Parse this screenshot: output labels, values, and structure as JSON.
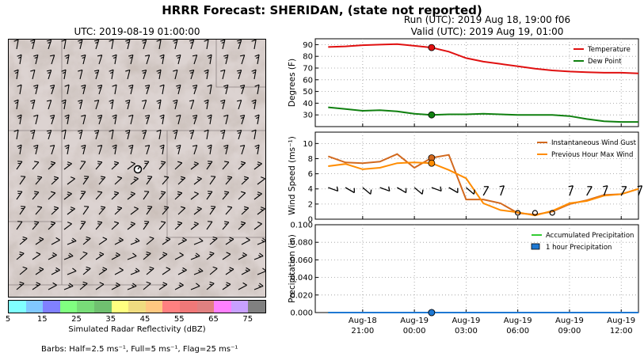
{
  "title": "HRRR Forecast: SHERIDAN, (state not reported)",
  "map": {
    "utc_label": "UTC: 2019-08-19 01:00:00",
    "colorbar": {
      "colors": [
        "#80ffff",
        "#80c8ff",
        "#8080ff",
        "#80ff80",
        "#78dc78",
        "#70c070",
        "#ffff80",
        "#f0dc80",
        "#ffc880",
        "#ff8080",
        "#f07878",
        "#e08080",
        "#ff80ff",
        "#c8a0ff",
        "#808080"
      ],
      "ticks": [
        "5",
        "15",
        "25",
        "35",
        "45",
        "55",
        "65",
        "75"
      ],
      "label": "Simulated Radar Reflectivity (dBZ)"
    },
    "barbs_note": "Barbs: Half=2.5 ms⁻¹, Full=5 ms⁻¹, Flag=25 ms⁻¹"
  },
  "run_info": {
    "line1": "Run (UTC): 2019 Aug 18, 19:00 f06",
    "line2": "Valid (UTC): 2019 Aug 19, 01:00"
  },
  "chart_data": [
    {
      "type": "line",
      "ylabel": "Degrees (F)",
      "ylim": [
        20,
        95
      ],
      "yticks": [
        30,
        40,
        50,
        60,
        70,
        80,
        90
      ],
      "grid": true,
      "legend": "top-right",
      "x_hours": [
        -5,
        -4,
        -3,
        -2,
        -1,
        0,
        1,
        2,
        3,
        4,
        5,
        6,
        7,
        8,
        9,
        10,
        11,
        12,
        13
      ],
      "highlight_hour": 1,
      "series": [
        {
          "name": "Temperature",
          "color": "#e01010",
          "values": [
            88,
            88.5,
            89.5,
            90,
            90.5,
            89,
            87.5,
            84,
            78.5,
            75.5,
            73.5,
            71.5,
            69.5,
            68,
            67,
            66.5,
            66,
            66,
            65.5
          ]
        },
        {
          "name": "Dew Point",
          "color": "#108010",
          "values": [
            36.5,
            35,
            33.5,
            34,
            33,
            31,
            30,
            30.5,
            30.5,
            31,
            30.5,
            30,
            30,
            30,
            29,
            26.5,
            24.5,
            24,
            24
          ]
        }
      ]
    },
    {
      "type": "line",
      "ylabel": "Wind Speed (ms⁻¹)",
      "ylim": [
        0,
        11.5
      ],
      "yticks": [
        0,
        2,
        4,
        6,
        8,
        10
      ],
      "grid": true,
      "legend": "top-right",
      "x_hours": [
        -5,
        -4,
        -3,
        -2,
        -1,
        0,
        1,
        2,
        3,
        4,
        5,
        6,
        7,
        8,
        9,
        10,
        11,
        12,
        13
      ],
      "highlight_hour": 1,
      "series": [
        {
          "name": "Instantaneous Wind Gust",
          "color": "#d2691e",
          "values": [
            8.3,
            7.5,
            7.4,
            7.6,
            8.6,
            6.8,
            8.1,
            8.5,
            2.6,
            2.6,
            2.1,
            0.8,
            0.6,
            1.0,
            2.0,
            2.5,
            3.2,
            3.3,
            4.0
          ]
        },
        {
          "name": "Previous Hour Max Wind",
          "color": "#ff8c00",
          "values": [
            7.0,
            7.3,
            6.6,
            6.8,
            7.4,
            7.5,
            7.4,
            6.5,
            5.4,
            2.1,
            1.2,
            0.9,
            0.5,
            1.1,
            2.1,
            2.4,
            3.1,
            3.3,
            4.0
          ]
        }
      ]
    },
    {
      "type": "line",
      "ylabel": "Precipitation (in)",
      "ylim": [
        0,
        0.1
      ],
      "yticks": [
        "0.000",
        "0.020",
        "0.040",
        "0.060",
        "0.080",
        "0.100"
      ],
      "grid": true,
      "legend": "top-right",
      "x_hours": [
        -5,
        -4,
        -3,
        -2,
        -1,
        0,
        1,
        2,
        3,
        4,
        5,
        6,
        7,
        8,
        9,
        10,
        11,
        12,
        13
      ],
      "highlight_hour": 1,
      "series": [
        {
          "name": "Accumulated Precipitation",
          "color": "#33cc33",
          "values": [
            0,
            0,
            0,
            0,
            0,
            0,
            0,
            0,
            0,
            0,
            0,
            0,
            0,
            0,
            0,
            0,
            0,
            0,
            0
          ]
        },
        {
          "name": "1 hour Precipitation",
          "color": "#1e78d2",
          "values": [
            0,
            0,
            0,
            0,
            0,
            0,
            0,
            0,
            0,
            0,
            0,
            0,
            0,
            0,
            0,
            0,
            0,
            0,
            0
          ]
        }
      ],
      "x_tick_labels": [
        {
          "hour": -3,
          "label1": "Aug-18",
          "label2": "21:00"
        },
        {
          "hour": 0,
          "label1": "Aug-19",
          "label2": "00:00"
        },
        {
          "hour": 3,
          "label1": "Aug-19",
          "label2": "03:00"
        },
        {
          "hour": 6,
          "label1": "Aug-19",
          "label2": "06:00"
        },
        {
          "hour": 9,
          "label1": "Aug-19",
          "label2": "09:00"
        },
        {
          "hour": 12,
          "label1": "Aug-19",
          "label2": "12:00"
        }
      ]
    }
  ]
}
